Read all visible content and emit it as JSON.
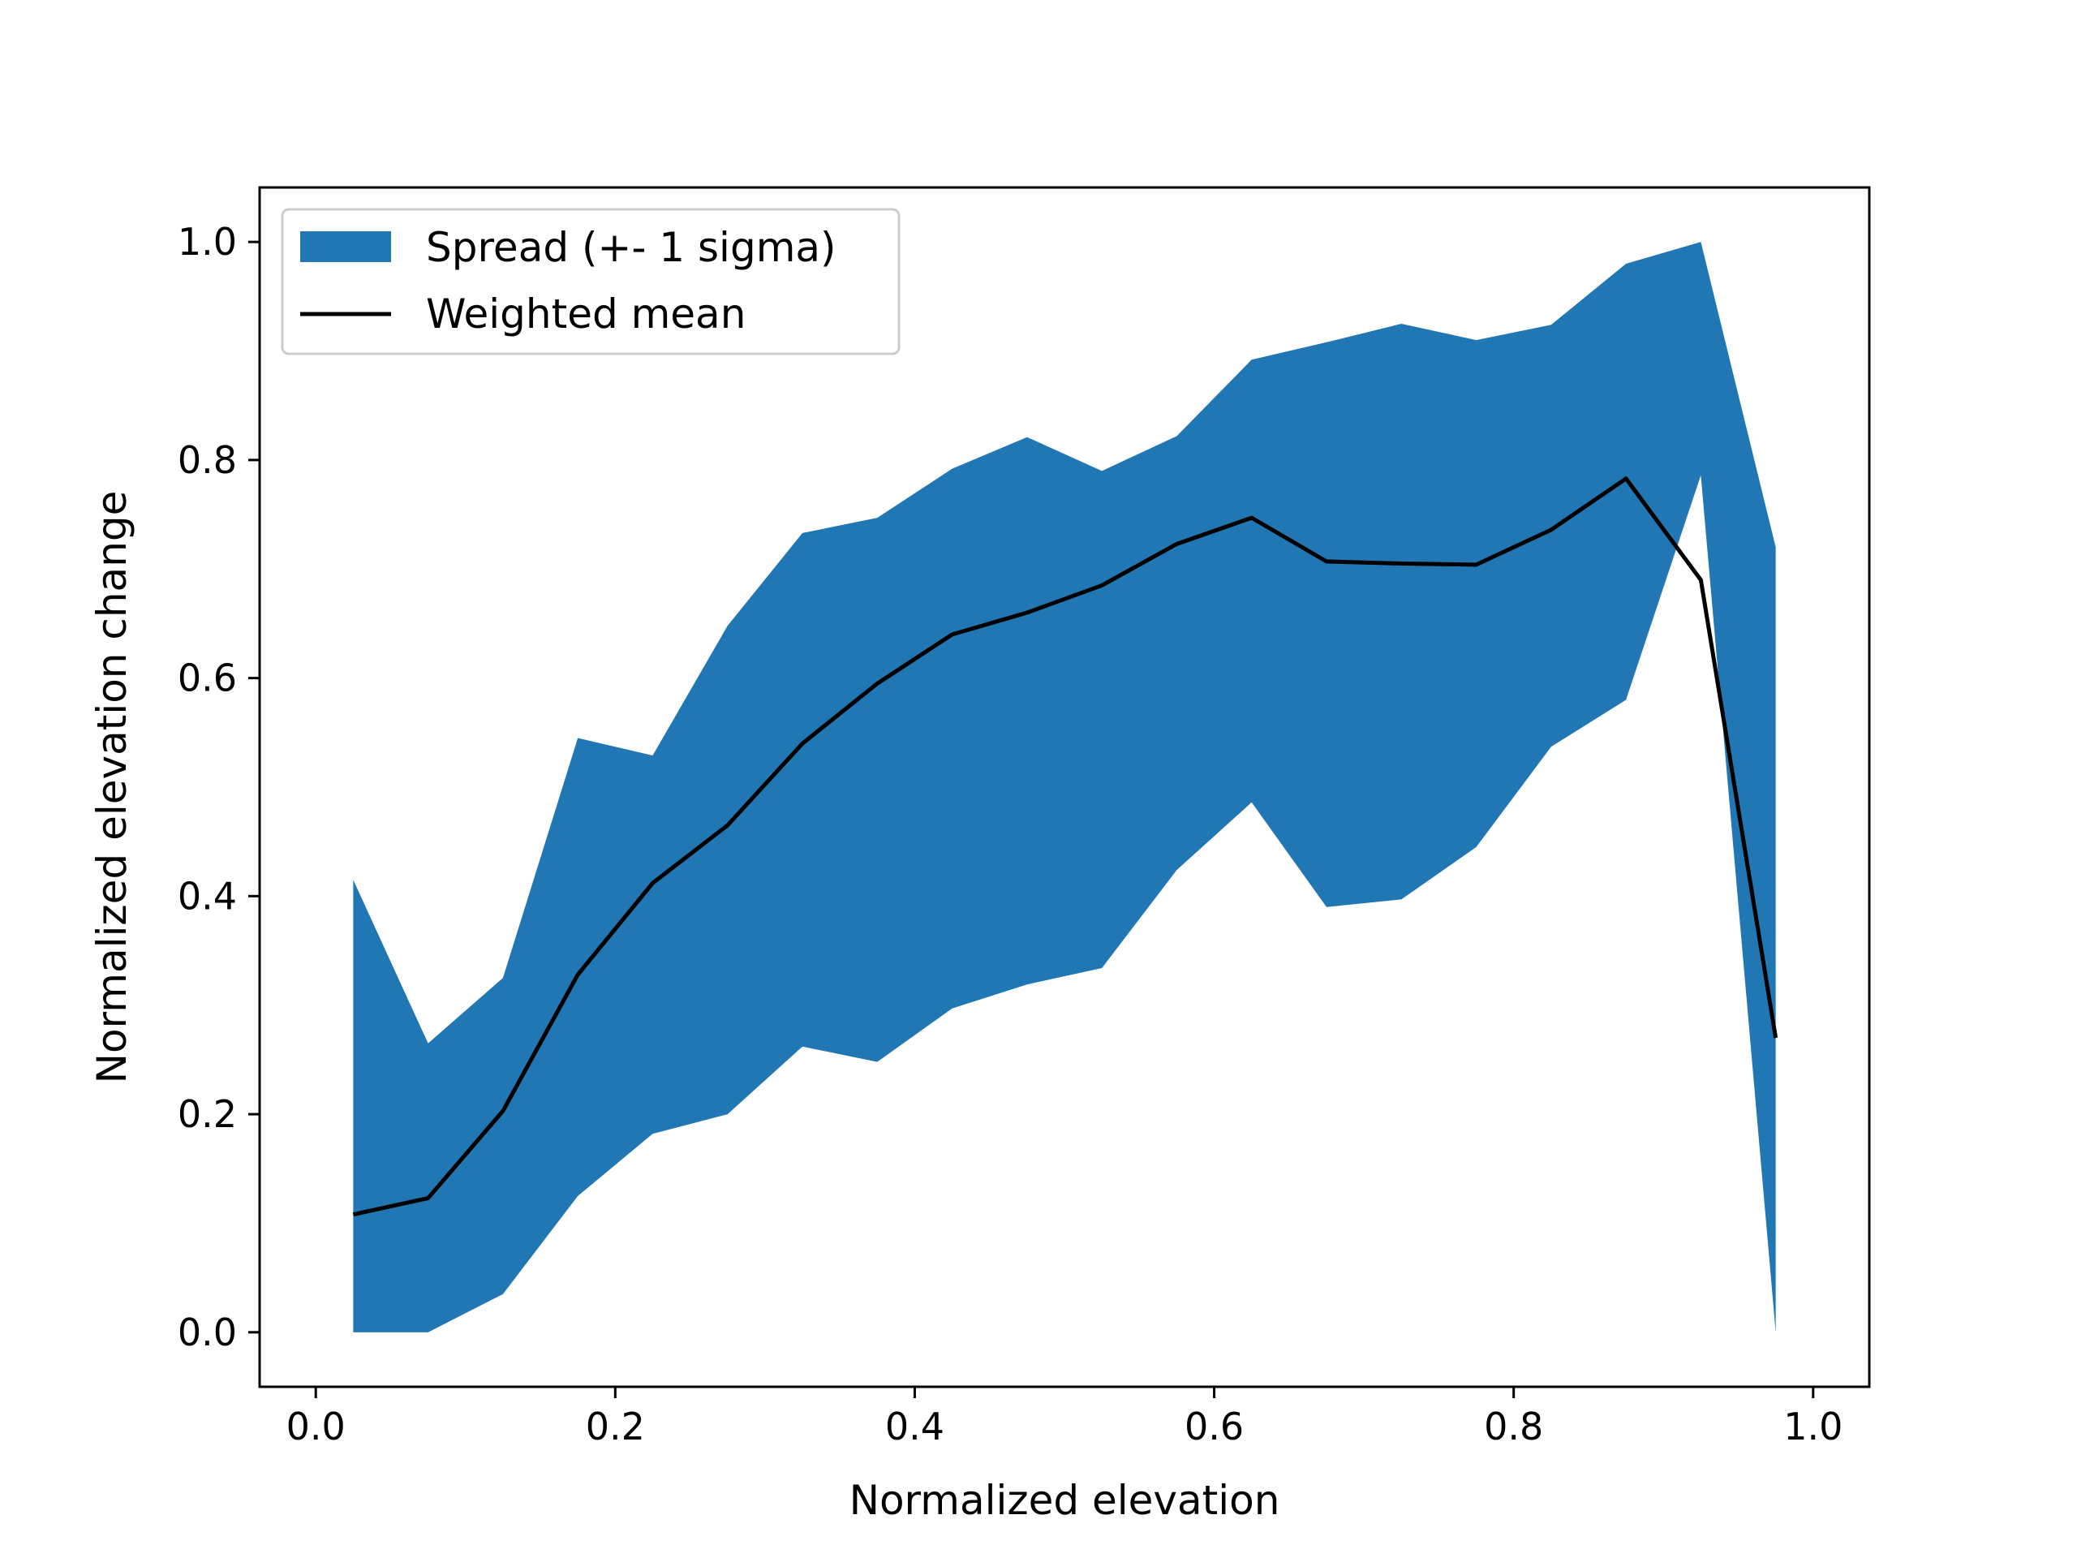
{
  "chart_data": {
    "type": "area",
    "title": "",
    "xlabel": "Normalized elevation",
    "ylabel": "Normalized elevation change",
    "xlim": [
      -0.0375,
      1.0375
    ],
    "ylim": [
      -0.05,
      1.05
    ],
    "xticks": [
      0.0,
      0.2,
      0.4,
      0.6,
      0.8,
      1.0
    ],
    "xtick_labels": [
      "0.0",
      "0.2",
      "0.4",
      "0.6",
      "0.8",
      "1.0"
    ],
    "yticks": [
      0.0,
      0.2,
      0.4,
      0.6,
      0.8,
      1.0
    ],
    "ytick_labels": [
      "0.0",
      "0.2",
      "0.4",
      "0.6",
      "0.8",
      "1.0"
    ],
    "grid": false,
    "legend": {
      "placement": "upper-left",
      "entries": [
        "Spread (+- 1 sigma)",
        "Weighted mean"
      ]
    },
    "x": [
      0.025,
      0.075,
      0.125,
      0.175,
      0.225,
      0.275,
      0.325,
      0.375,
      0.425,
      0.475,
      0.525,
      0.575,
      0.625,
      0.675,
      0.725,
      0.775,
      0.825,
      0.875,
      0.925,
      0.975
    ],
    "series": [
      {
        "name": "Spread (+- 1 sigma)",
        "kind": "band",
        "color": "#2077b4",
        "lower": [
          0.0,
          0.0,
          0.035,
          0.125,
          0.182,
          0.2,
          0.262,
          0.248,
          0.297,
          0.319,
          0.334,
          0.424,
          0.486,
          0.39,
          0.397,
          0.445,
          0.537,
          0.58,
          0.786,
          0.0
        ],
        "upper": [
          0.415,
          0.265,
          0.325,
          0.545,
          0.529,
          0.648,
          0.733,
          0.747,
          0.792,
          0.821,
          0.79,
          0.822,
          0.892,
          0.908,
          0.925,
          0.91,
          0.924,
          0.98,
          1.0,
          0.72
        ]
      },
      {
        "name": "Weighted mean",
        "kind": "line",
        "color": "#000000",
        "values": [
          0.108,
          0.123,
          0.203,
          0.328,
          0.412,
          0.465,
          0.54,
          0.595,
          0.64,
          0.66,
          0.685,
          0.723,
          0.747,
          0.707,
          0.705,
          0.704,
          0.736,
          0.783,
          0.69,
          0.27
        ]
      }
    ]
  }
}
